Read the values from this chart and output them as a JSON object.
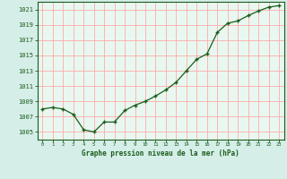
{
  "hours": [
    0,
    1,
    2,
    3,
    4,
    5,
    6,
    7,
    8,
    9,
    10,
    11,
    12,
    13,
    14,
    15,
    16,
    17,
    18,
    19,
    20,
    21,
    22,
    23
  ],
  "pressure": [
    1008.0,
    1008.2,
    1008.0,
    1007.3,
    1005.3,
    1005.0,
    1006.3,
    1006.3,
    1007.8,
    1008.5,
    1009.0,
    1009.7,
    1010.5,
    1011.5,
    1013.0,
    1014.5,
    1015.2,
    1018.0,
    1019.2,
    1019.5,
    1020.2,
    1020.8,
    1021.3,
    1021.5
  ],
  "line_color": "#1a5c1a",
  "marker": "+",
  "bg_color": "#d5eee8",
  "plot_bg_color": "#e8f8f0",
  "grid_color": "#ffaaaa",
  "ylabel_ticks": [
    1005,
    1007,
    1009,
    1011,
    1013,
    1015,
    1017,
    1019,
    1021
  ],
  "xlabel_label": "Graphe pression niveau de la mer (hPa)",
  "ylim": [
    1004.0,
    1022.0
  ],
  "xlim": [
    -0.5,
    23.5
  ],
  "axis_color": "#1a5c1a",
  "font_color": "#1a5c1a"
}
